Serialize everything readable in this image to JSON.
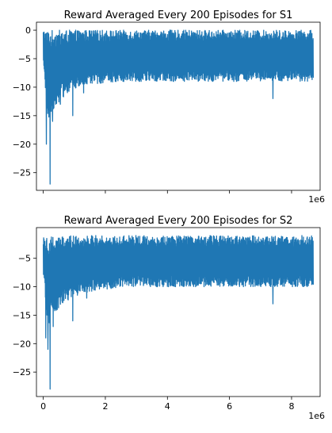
{
  "chart_data": [
    {
      "type": "line",
      "title": "Reward Averaged Every 200 Episodes for S1",
      "xlabel": "",
      "ylabel": "",
      "xlim": [
        -220000,
        8920000
      ],
      "ylim": [
        -28.1,
        1.4
      ],
      "x_ticks": [
        0,
        2000000,
        4000000,
        6000000,
        8000000
      ],
      "x_tick_labels": [
        "",
        "",
        "",
        "",
        ""
      ],
      "x_offset_text": "1e6",
      "y_ticks": [
        0,
        -5,
        -10,
        -15,
        -20,
        -25
      ],
      "y_tick_labels": [
        "0",
        "−5",
        "−10",
        "−15",
        "−20",
        "−25"
      ],
      "grid": false,
      "legend": "none",
      "color": "#1f77b4",
      "x_range": [
        0,
        8700000
      ],
      "band_max": 0,
      "lower_envelope": [
        [
          0,
          -6
        ],
        [
          150000,
          -16
        ],
        [
          300000,
          -14
        ],
        [
          600000,
          -12
        ],
        [
          900000,
          -10.5
        ],
        [
          1500000,
          -9.5
        ],
        [
          2500000,
          -9
        ],
        [
          8700000,
          -9
        ]
      ],
      "spikes": [
        [
          100000,
          -20
        ],
        [
          220000,
          -27
        ],
        [
          300000,
          -16
        ],
        [
          400000,
          -13
        ],
        [
          550000,
          -13
        ],
        [
          950000,
          -15
        ],
        [
          1300000,
          -11
        ],
        [
          7400000,
          -12
        ]
      ],
      "series": [
        {
          "name": "",
          "x_range": [
            0,
            8700000
          ],
          "y_range": [
            -27,
            0
          ]
        }
      ]
    },
    {
      "type": "line",
      "title": "Reward Averaged Every 200 Episodes for S2",
      "xlabel": "",
      "ylabel": "",
      "xlim": [
        -220000,
        8920000
      ],
      "ylim": [
        -29.3,
        0.4
      ],
      "x_ticks": [
        0,
        2000000,
        4000000,
        6000000,
        8000000
      ],
      "x_tick_labels": [
        "0",
        "2",
        "4",
        "6",
        "8"
      ],
      "x_offset_text": "1e6",
      "y_ticks": [
        -5,
        -10,
        -15,
        -20,
        -25
      ],
      "y_tick_labels": [
        "−5",
        "−10",
        "−15",
        "−20",
        "−25"
      ],
      "grid": false,
      "legend": "none",
      "color": "#1f77b4",
      "x_range": [
        0,
        8700000
      ],
      "band_max": -1,
      "lower_envelope": [
        [
          0,
          -8
        ],
        [
          150000,
          -17
        ],
        [
          300000,
          -15
        ],
        [
          600000,
          -13
        ],
        [
          900000,
          -12
        ],
        [
          1500000,
          -11
        ],
        [
          2500000,
          -10
        ],
        [
          8700000,
          -10
        ]
      ],
      "spikes": [
        [
          80000,
          -19
        ],
        [
          150000,
          -21
        ],
        [
          220000,
          -28
        ],
        [
          320000,
          -17
        ],
        [
          450000,
          -14
        ],
        [
          950000,
          -16
        ],
        [
          1400000,
          -12
        ],
        [
          7400000,
          -13
        ]
      ],
      "series": [
        {
          "name": "",
          "x_range": [
            0,
            8700000
          ],
          "y_range": [
            -28,
            -1
          ]
        }
      ]
    }
  ]
}
